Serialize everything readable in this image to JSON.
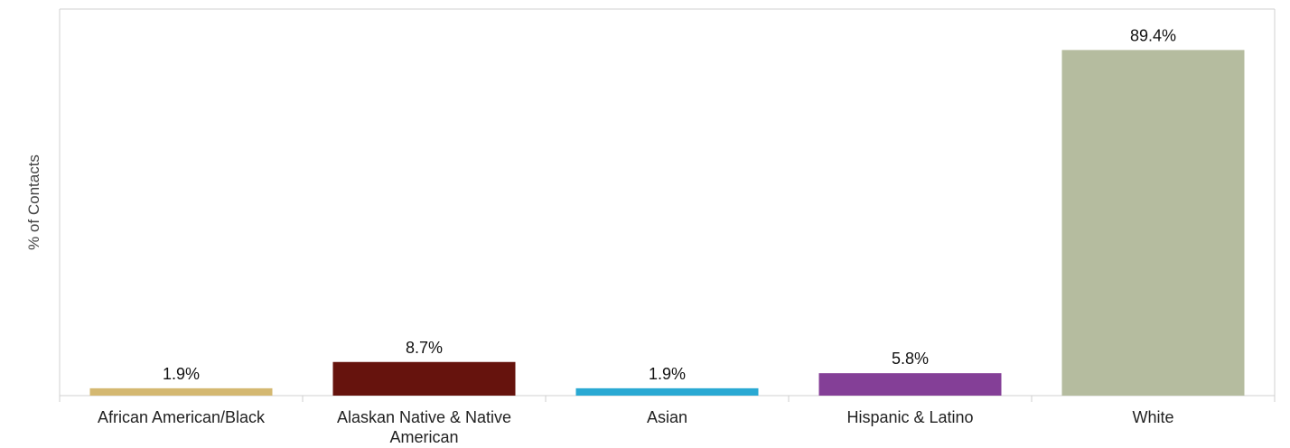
{
  "chart_data": {
    "type": "bar",
    "ylabel": "% of Contacts",
    "categories": [
      [
        "African American/Black"
      ],
      [
        "Alaskan Native & Native",
        "American"
      ],
      [
        "Asian"
      ],
      [
        "Hispanic & Latino"
      ],
      [
        "White"
      ]
    ],
    "values": [
      1.9,
      8.7,
      1.9,
      5.8,
      89.4
    ],
    "value_labels": [
      "1.9%",
      "8.7%",
      "1.9%",
      "5.8%",
      "89.4%"
    ],
    "colors": [
      "#d4b871",
      "#66130d",
      "#2aa9d3",
      "#843f97",
      "#b5bc9f"
    ],
    "ylim": [
      0,
      100
    ],
    "grid": false,
    "legend": "none"
  },
  "style": {
    "frame_color": "#d0d0d0",
    "tick_color": "#cfcfcf"
  }
}
